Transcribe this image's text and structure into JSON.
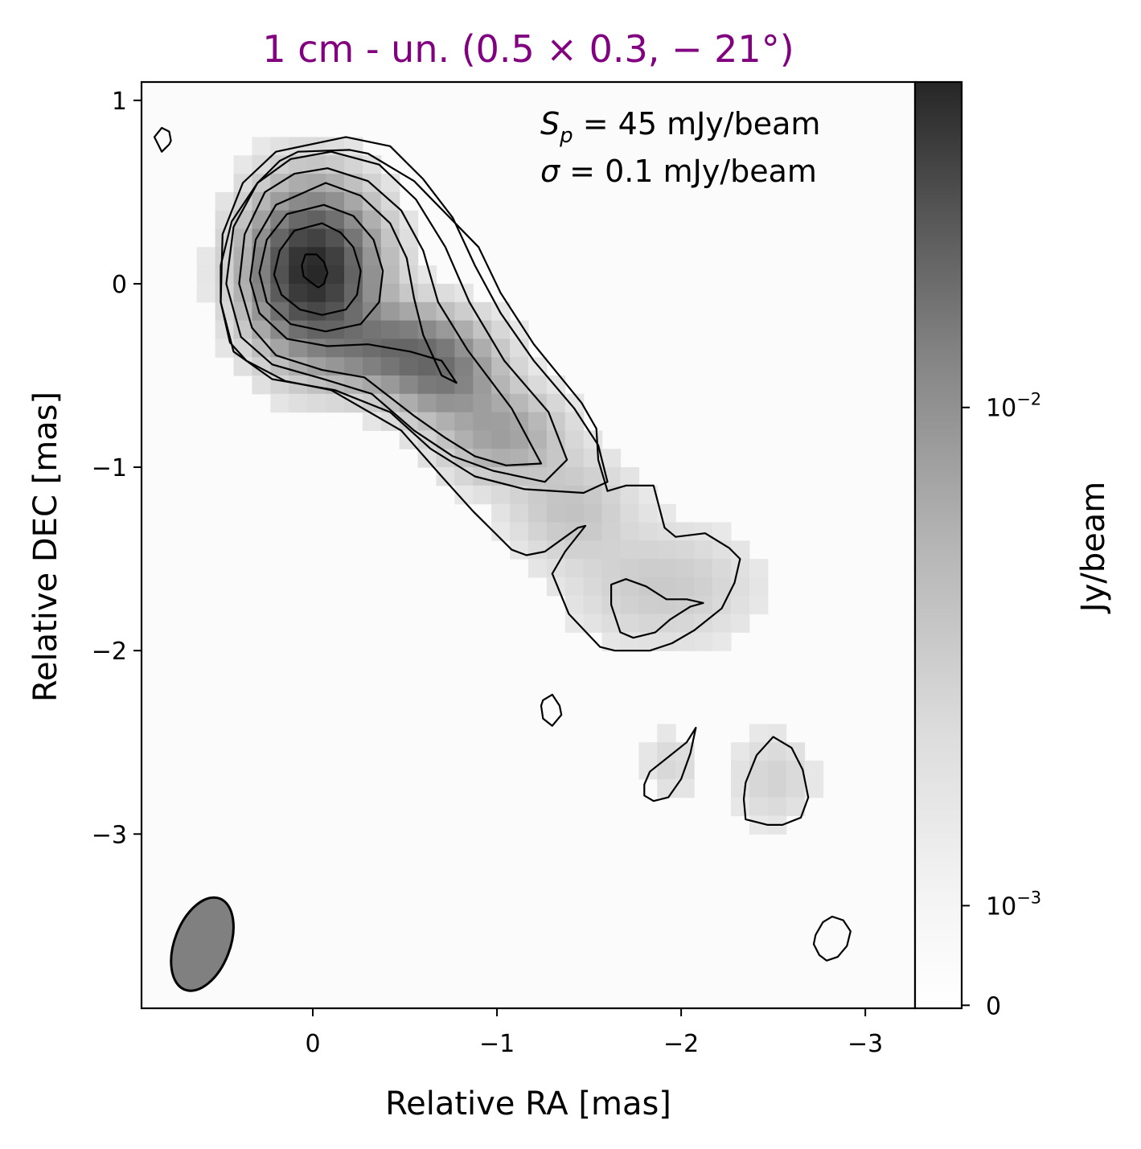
{
  "chart_data": {
    "type": "heatmap",
    "title": "1 cm - un. (0.5 × 0.3, − 21°)",
    "title_color": "#800080",
    "xlabel": "Relative RA [mas]",
    "ylabel": "Relative DEC [mas]",
    "xlim": [
      0.93,
      -3.27
    ],
    "ylim": [
      -3.95,
      1.1
    ],
    "x_ticks": [
      {
        "value": 0,
        "label": "0"
      },
      {
        "value": -1,
        "label": "−1"
      },
      {
        "value": -2,
        "label": "−2"
      },
      {
        "value": -3,
        "label": "−3"
      }
    ],
    "y_ticks": [
      {
        "value": 1,
        "label": "1"
      },
      {
        "value": 0,
        "label": "0"
      },
      {
        "value": -1,
        "label": "−1"
      },
      {
        "value": -2,
        "label": "−2"
      },
      {
        "value": -3,
        "label": "−3"
      }
    ],
    "colormap": "Greys",
    "colorbar": {
      "label": "Jy/beam",
      "scale": "symlog",
      "ticks": [
        {
          "value": 0,
          "label": "0"
        },
        {
          "value": 0.001,
          "label": "10",
          "exp": "−3"
        },
        {
          "value": 0.01,
          "label": "10",
          "exp": "−2"
        }
      ],
      "max": 0.045
    },
    "annotations": [
      {
        "symbol": "S",
        "sub": "p",
        "text": " = 45 mJy/beam"
      },
      {
        "symbol": "σ",
        "sub": "",
        "text": " = 0.1 mJy/beam"
      }
    ],
    "peak_flux_mJy": 45,
    "rms_mJy": 0.1,
    "beam": {
      "center": [
        0.6,
        -3.6
      ],
      "major_mas": 0.5,
      "minor_mas": 0.3,
      "pa_deg": -21,
      "fill": "#808080"
    },
    "grid": false,
    "contours": [
      [
        [
          -0.02,
          0.16
        ],
        [
          -0.06,
          0.12
        ],
        [
          -0.08,
          0.06
        ],
        [
          -0.06,
          0.0
        ],
        [
          -0.03,
          -0.02
        ],
        [
          0.0,
          0.0
        ],
        [
          0.05,
          0.04
        ],
        [
          0.06,
          0.1
        ],
        [
          0.04,
          0.16
        ]
      ],
      [
        [
          -0.05,
          0.33
        ],
        [
          -0.15,
          0.28
        ],
        [
          -0.22,
          0.2
        ],
        [
          -0.26,
          0.07
        ],
        [
          -0.24,
          -0.06
        ],
        [
          -0.18,
          -0.14
        ],
        [
          -0.05,
          -0.17
        ],
        [
          0.07,
          -0.14
        ],
        [
          0.17,
          -0.06
        ],
        [
          0.21,
          0.05
        ],
        [
          0.18,
          0.18
        ],
        [
          0.1,
          0.29
        ]
      ],
      [
        [
          -0.06,
          0.43
        ],
        [
          -0.22,
          0.37
        ],
        [
          -0.33,
          0.24
        ],
        [
          -0.38,
          0.07
        ],
        [
          -0.36,
          -0.1
        ],
        [
          -0.26,
          -0.22
        ],
        [
          -0.07,
          -0.26
        ],
        [
          0.12,
          -0.22
        ],
        [
          0.25,
          -0.1
        ],
        [
          0.29,
          0.06
        ],
        [
          0.25,
          0.24
        ],
        [
          0.14,
          0.38
        ]
      ],
      [
        [
          -0.07,
          0.55
        ],
        [
          -0.26,
          0.48
        ],
        [
          -0.42,
          0.33
        ],
        [
          -0.51,
          0.14
        ],
        [
          -0.55,
          -0.08
        ],
        [
          -0.6,
          -0.28
        ],
        [
          -0.7,
          -0.5
        ],
        [
          -0.78,
          -0.54
        ],
        [
          -0.7,
          -0.42
        ],
        [
          -0.53,
          -0.37
        ],
        [
          -0.3,
          -0.33
        ],
        [
          -0.08,
          -0.34
        ],
        [
          0.14,
          -0.3
        ],
        [
          0.29,
          -0.16
        ],
        [
          0.34,
          0.02
        ],
        [
          0.31,
          0.24
        ],
        [
          0.2,
          0.43
        ]
      ],
      [
        [
          -0.08,
          0.63
        ],
        [
          -0.3,
          0.56
        ],
        [
          -0.48,
          0.4
        ],
        [
          -0.6,
          0.18
        ],
        [
          -0.68,
          -0.1
        ],
        [
          -0.84,
          -0.36
        ],
        [
          -1.08,
          -0.68
        ],
        [
          -1.24,
          -0.98
        ],
        [
          -1.05,
          -0.99
        ],
        [
          -0.88,
          -0.94
        ],
        [
          -0.72,
          -0.84
        ],
        [
          -0.55,
          -0.72
        ],
        [
          -0.28,
          -0.51
        ],
        [
          -0.05,
          -0.47
        ],
        [
          0.2,
          -0.39
        ],
        [
          0.33,
          -0.24
        ],
        [
          0.4,
          0.0
        ],
        [
          0.37,
          0.27
        ],
        [
          0.26,
          0.5
        ],
        [
          0.1,
          0.6
        ]
      ],
      [
        [
          -0.1,
          0.72
        ],
        [
          -0.36,
          0.65
        ],
        [
          -0.56,
          0.46
        ],
        [
          -0.72,
          0.2
        ],
        [
          -0.85,
          -0.1
        ],
        [
          -1.04,
          -0.42
        ],
        [
          -1.28,
          -0.7
        ],
        [
          -1.38,
          -0.96
        ],
        [
          -1.26,
          -1.08
        ],
        [
          -0.98,
          -1.02
        ],
        [
          -0.76,
          -0.94
        ],
        [
          -0.55,
          -0.8
        ],
        [
          -0.32,
          -0.6
        ],
        [
          -0.06,
          -0.52
        ],
        [
          0.22,
          -0.44
        ],
        [
          0.39,
          -0.29
        ],
        [
          0.47,
          0.0
        ],
        [
          0.43,
          0.31
        ],
        [
          0.3,
          0.55
        ],
        [
          0.12,
          0.68
        ]
      ],
      [
        [
          -0.18,
          0.8
        ],
        [
          -0.42,
          0.75
        ],
        [
          -0.6,
          0.57
        ],
        [
          -0.76,
          0.36
        ],
        [
          -0.88,
          0.1
        ],
        [
          -1.02,
          -0.16
        ],
        [
          -1.2,
          -0.42
        ],
        [
          -1.42,
          -0.68
        ],
        [
          -1.55,
          -0.88
        ],
        [
          -1.6,
          -1.08
        ],
        [
          -1.47,
          -1.14
        ],
        [
          -1.15,
          -1.12
        ],
        [
          -0.88,
          -1.05
        ],
        [
          -0.64,
          -0.9
        ],
        [
          -0.42,
          -0.7
        ],
        [
          -0.12,
          -0.58
        ],
        [
          0.22,
          -0.52
        ],
        [
          0.43,
          -0.37
        ],
        [
          0.5,
          -0.1
        ],
        [
          0.49,
          0.27
        ],
        [
          0.38,
          0.55
        ],
        [
          0.2,
          0.72
        ]
      ],
      [
        [
          0.08,
          0.72
        ],
        [
          -0.2,
          0.73
        ],
        [
          -0.3,
          0.71
        ],
        [
          -0.55,
          0.56
        ],
        [
          -0.9,
          0.2
        ],
        [
          -1.02,
          -0.05
        ],
        [
          -1.2,
          -0.33
        ],
        [
          -1.46,
          -0.65
        ],
        [
          -1.54,
          -0.79
        ],
        [
          -1.55,
          -0.96
        ],
        [
          -1.6,
          -1.13
        ],
        [
          -1.7,
          -1.1
        ],
        [
          -1.85,
          -1.1
        ],
        [
          -1.91,
          -1.33
        ],
        [
          -1.97,
          -1.38
        ],
        [
          -2.13,
          -1.36
        ],
        [
          -2.26,
          -1.44
        ],
        [
          -2.32,
          -1.5
        ],
        [
          -2.29,
          -1.63
        ],
        [
          -2.22,
          -1.77
        ],
        [
          -2.07,
          -1.89
        ],
        [
          -1.95,
          -1.96
        ],
        [
          -1.83,
          -2.0
        ],
        [
          -1.64,
          -2.0
        ],
        [
          -1.56,
          -1.98
        ],
        [
          -1.39,
          -1.8
        ],
        [
          -1.3,
          -1.58
        ],
        [
          -1.37,
          -1.46
        ],
        [
          -1.48,
          -1.32
        ],
        [
          -1.44,
          -1.33
        ],
        [
          -1.26,
          -1.46
        ],
        [
          -1.16,
          -1.48
        ],
        [
          -1.08,
          -1.45
        ],
        [
          -0.98,
          -1.35
        ],
        [
          -0.87,
          -1.24
        ],
        [
          -0.7,
          -1.05
        ],
        [
          -0.48,
          -0.8
        ],
        [
          -0.1,
          -0.58
        ],
        [
          0.15,
          -0.53
        ],
        [
          0.36,
          -0.42
        ],
        [
          0.45,
          -0.32
        ],
        [
          0.5,
          -0.1
        ],
        [
          0.5,
          0.1
        ],
        [
          0.44,
          0.34
        ],
        [
          0.3,
          0.55
        ],
        [
          0.18,
          0.67
        ]
      ],
      [
        [
          -1.62,
          -1.64
        ],
        [
          -1.7,
          -1.61
        ],
        [
          -1.81,
          -1.65
        ],
        [
          -1.92,
          -1.72
        ],
        [
          -2.03,
          -1.72
        ],
        [
          -2.12,
          -1.74
        ],
        [
          -2.05,
          -1.76
        ],
        [
          -1.94,
          -1.83
        ],
        [
          -1.86,
          -1.9
        ],
        [
          -1.74,
          -1.93
        ],
        [
          -1.67,
          -1.9
        ],
        [
          -1.62,
          -1.75
        ]
      ],
      [
        [
          -1.25,
          -2.27
        ],
        [
          -1.3,
          -2.24
        ],
        [
          -1.34,
          -2.3
        ],
        [
          -1.35,
          -2.35
        ],
        [
          -1.3,
          -2.41
        ],
        [
          -1.25,
          -2.37
        ],
        [
          -1.24,
          -2.3
        ]
      ],
      [
        [
          -1.83,
          -2.66
        ],
        [
          -1.93,
          -2.58
        ],
        [
          -2.03,
          -2.5
        ],
        [
          -2.08,
          -2.42
        ],
        [
          -2.05,
          -2.56
        ],
        [
          -2.0,
          -2.7
        ],
        [
          -1.93,
          -2.8
        ],
        [
          -1.85,
          -2.82
        ],
        [
          -1.8,
          -2.79
        ],
        [
          -1.8,
          -2.73
        ]
      ],
      [
        [
          -2.35,
          -2.72
        ],
        [
          -2.41,
          -2.57
        ],
        [
          -2.5,
          -2.47
        ],
        [
          -2.6,
          -2.53
        ],
        [
          -2.66,
          -2.65
        ],
        [
          -2.69,
          -2.8
        ],
        [
          -2.65,
          -2.91
        ],
        [
          -2.55,
          -2.95
        ],
        [
          -2.47,
          -2.95
        ],
        [
          -2.35,
          -2.92
        ],
        [
          -2.34,
          -2.81
        ]
      ],
      [
        [
          -2.73,
          -3.55
        ],
        [
          -2.77,
          -3.48
        ],
        [
          -2.82,
          -3.45
        ],
        [
          -2.88,
          -3.47
        ],
        [
          -2.92,
          -3.53
        ],
        [
          -2.9,
          -3.61
        ],
        [
          -2.85,
          -3.67
        ],
        [
          -2.79,
          -3.69
        ],
        [
          -2.75,
          -3.66
        ],
        [
          -2.72,
          -3.6
        ]
      ],
      [
        [
          0.86,
          0.8
        ],
        [
          0.82,
          0.85
        ],
        [
          0.78,
          0.83
        ],
        [
          0.77,
          0.78
        ],
        [
          0.78,
          0.76
        ],
        [
          0.82,
          0.72
        ]
      ]
    ],
    "emission_components": [
      {
        "x": 0.0,
        "y": 0.07,
        "sx": 0.2,
        "sy": 0.26,
        "amp": 0.99
      },
      {
        "x": -0.45,
        "y": -0.35,
        "sx": 0.25,
        "sy": 0.14,
        "amp": 0.45
      },
      {
        "x": -0.72,
        "y": -0.52,
        "sx": 0.18,
        "sy": 0.14,
        "amp": 0.32
      },
      {
        "x": -1.02,
        "y": -0.82,
        "sx": 0.2,
        "sy": 0.15,
        "amp": 0.22
      },
      {
        "x": -1.4,
        "y": -1.22,
        "sx": 0.2,
        "sy": 0.18,
        "amp": 0.09
      },
      {
        "x": -1.9,
        "y": -1.65,
        "sx": 0.3,
        "sy": 0.2,
        "amp": 0.07
      },
      {
        "x": -2.5,
        "y": -2.7,
        "sx": 0.14,
        "sy": 0.16,
        "amp": 0.05
      },
      {
        "x": -1.95,
        "y": -2.62,
        "sx": 0.1,
        "sy": 0.12,
        "amp": 0.04
      }
    ]
  }
}
